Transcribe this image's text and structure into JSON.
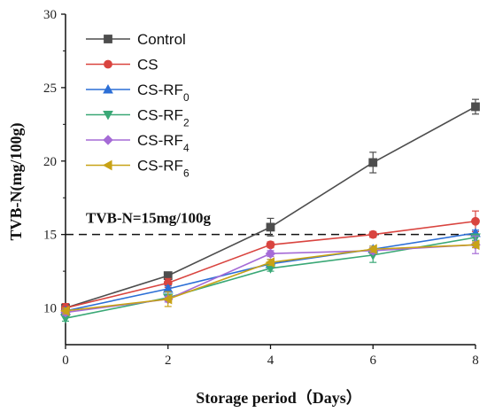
{
  "chart_data": {
    "type": "line",
    "xlabel": "Storage period（Days）",
    "ylabel": "TVB-N(mg/100g)",
    "xlim": [
      0,
      8
    ],
    "ylim": [
      7.5,
      30
    ],
    "xticks": [
      "0",
      "2",
      "4",
      "6",
      "8"
    ],
    "yticks": [
      "10",
      "15",
      "20",
      "25",
      "30"
    ],
    "x": [
      0,
      2,
      4,
      6,
      8
    ],
    "reference_line": {
      "y": 15,
      "label": "TVB-N=15mg/100g"
    },
    "legend_position": "top-left",
    "series": [
      {
        "name": "Control",
        "base": "Control",
        "sub": "",
        "color": "#4d4d4d",
        "marker": "square",
        "values": [
          10.0,
          12.2,
          15.5,
          19.9,
          23.7
        ],
        "errors": [
          0.2,
          0.2,
          0.6,
          0.7,
          0.5
        ]
      },
      {
        "name": "CS",
        "base": "CS",
        "sub": "",
        "color": "#d9443f",
        "marker": "circle",
        "values": [
          10.0,
          11.7,
          14.3,
          15.0,
          15.9
        ],
        "errors": [
          0.3,
          0.3,
          0.2,
          0.2,
          0.7
        ]
      },
      {
        "name": "CS-RF0",
        "base": "CS-RF",
        "sub": "0",
        "color": "#2c6fd6",
        "marker": "triangle-up",
        "values": [
          9.8,
          11.3,
          13.0,
          14.0,
          15.1
        ],
        "errors": [
          0.2,
          0.2,
          0.3,
          0.2,
          0.2
        ]
      },
      {
        "name": "CS-RF2",
        "base": "CS-RF",
        "sub": "2",
        "color": "#3aa876",
        "marker": "triangle-down",
        "values": [
          9.3,
          10.7,
          12.7,
          13.6,
          14.8
        ],
        "errors": [
          0.2,
          0.2,
          0.2,
          0.5,
          0.2
        ]
      },
      {
        "name": "CS-RF4",
        "base": "CS-RF",
        "sub": "4",
        "color": "#a56bd6",
        "marker": "diamond",
        "values": [
          9.7,
          10.6,
          13.7,
          13.9,
          14.3
        ],
        "errors": [
          0.2,
          0.2,
          0.2,
          0.2,
          0.6
        ]
      },
      {
        "name": "CS-RF6",
        "base": "CS-RF",
        "sub": "6",
        "color": "#c8a216",
        "marker": "triangle-left",
        "values": [
          9.8,
          10.6,
          13.1,
          14.0,
          14.3
        ],
        "errors": [
          0.2,
          0.5,
          0.2,
          0.2,
          0.2
        ]
      }
    ]
  }
}
